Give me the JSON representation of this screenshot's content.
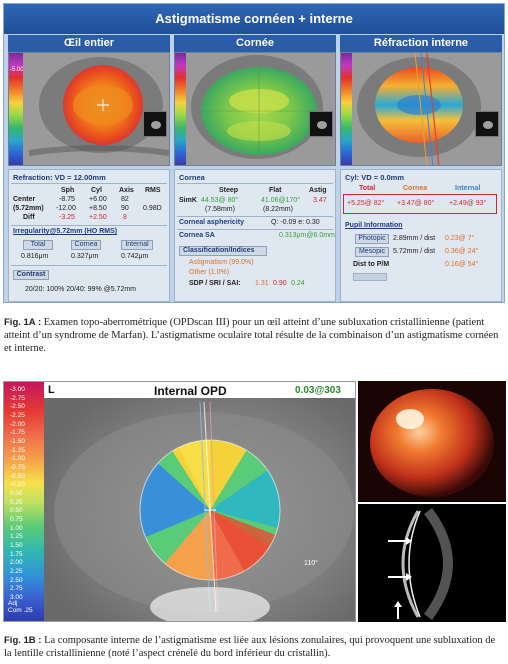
{
  "fig1a": {
    "banner": "Astigmatisme cornéen + interne",
    "col_headers": [
      "Œil entier",
      "Cornée",
      "Réfraction interne"
    ],
    "colorbar_value": "-5.00",
    "refraction": {
      "title": "Refraction: VD = 12.00mm",
      "headers": [
        "Sph",
        "Cyl",
        "Axis",
        "RMS"
      ],
      "row_center_label": "Center",
      "row_center_size": "(5.72mm)",
      "row_center": [
        "-8.75",
        "+6.00",
        "82",
        ""
      ],
      "row_center2": [
        "-12.00",
        "+8.50",
        "90",
        "0.98D"
      ],
      "row_diff_label": "Diff",
      "row_diff": [
        "-3.25",
        "+2.50",
        "8"
      ],
      "irregularity_title": "Irregularity@5.72mm (HO RMS)",
      "irr_labels": [
        "Total",
        "Cornea",
        "Internal"
      ],
      "irr_values": [
        "0.816μm",
        "0.327μm",
        "0.742μm"
      ],
      "contrast_label": "Contrast",
      "contrast_value": "20/20: 100%  20/40: 99%  @5.72mm"
    },
    "cornea": {
      "title": "Cornea",
      "headers": [
        "Steep",
        "Flat",
        "Astig"
      ],
      "simk_label": "SimK",
      "simk_steep": "44.53@ 80°",
      "simk_steep_mm": "(7.58mm)",
      "simk_flat": "41.06@170°",
      "simk_flat_mm": "(8.22mm)",
      "simk_astig": "3.47",
      "asphericity_label": "Corneal asphericity",
      "asphericity_value": "Q: -0.09   e: 0.30",
      "sa_label": "Cornea SA",
      "sa_value": "0.313μm@6.0mm",
      "classification_title": "Classification/Indices",
      "classification_1": "Astigmatism (99.0%)",
      "classification_2": "Other (1.0%)",
      "sdp_label": "SDP / SRI / SAI:",
      "sdp_values": [
        "1.31",
        "0.90",
        "0.24"
      ]
    },
    "internal": {
      "title": "Cyl: VD = 0.0mm",
      "headers": [
        "Total",
        "Cornea",
        "Internal"
      ],
      "values": [
        "+5.25@ 82°",
        "+3.47@ 80°",
        "+2.49@ 93°"
      ],
      "pupil_title": "Pupil Information",
      "pupil_rows": [
        {
          "label": "Photopic",
          "value": "2.89mm / dist",
          "extra": "0.23@ 7°"
        },
        {
          "label": "Mesopic",
          "value": "5.72mm / dist",
          "extra": "0.36@ 24°"
        },
        {
          "label": "Dist to P/M",
          "value": "",
          "extra": "0.16@ 54°"
        }
      ]
    }
  },
  "caption_1a": {
    "label": "Fig. 1A :",
    "text": "Examen topo-aberrométrique (OPDscan III) pour un œil atteint d’une subluxation cristallinienne (patient atteint d’un syndrome de Marfan). L’astigmatisme oculaire total résulte de la combinaison d’un astigmatisme cornéen et interne."
  },
  "fig1b": {
    "eye_label": "L",
    "title": "Internal OPD",
    "value": "0.03@303",
    "scale_ticks": [
      "-3.00",
      "-2.75",
      "-2.50",
      "-2.25",
      "-2.00",
      "-1.75",
      "-1.50",
      "-1.25",
      "-1.00",
      "-0.75",
      "-0.50",
      "-0.25",
      "0.00",
      "0.25",
      "0.50",
      "0.75",
      "1.00",
      "1.25",
      "1.50",
      "1.75",
      "2.00",
      "2.25",
      "2.50",
      "2.75",
      "3.00"
    ],
    "adj_label": "Adj",
    "com_label": "Com .25",
    "angle_label": "110°"
  },
  "caption_1b": {
    "label": "Fig. 1B :",
    "text": "La composante interne de l’astigmatisme est liée aux lésions zonulaires, qui provoquent une subluxation de la lentille cristallinienne (noté l’aspect crénelé du bord inférieur du cristallin)."
  }
}
